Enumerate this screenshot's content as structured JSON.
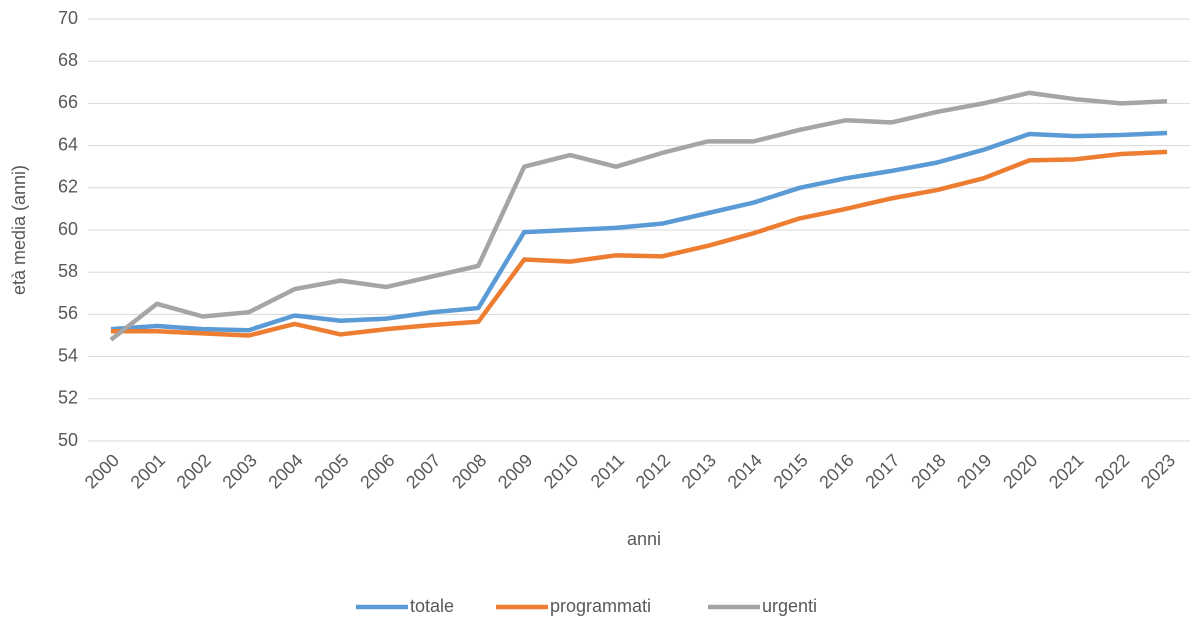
{
  "chart_data": {
    "type": "line",
    "x_label": "anni",
    "y_label": "età media (anni)",
    "categories": [
      "2000",
      "2001",
      "2002",
      "2003",
      "2004",
      "2005",
      "2006",
      "2007",
      "2008",
      "2009",
      "2010",
      "2011",
      "2012",
      "2013",
      "2014",
      "2015",
      "2016",
      "2017",
      "2018",
      "2019",
      "2020",
      "2021",
      "2022",
      "2023"
    ],
    "series": [
      {
        "name": "totale",
        "color": "#5b9bd5",
        "values": [
          55.3,
          55.45,
          55.3,
          55.25,
          55.95,
          55.7,
          55.8,
          56.1,
          56.3,
          59.9,
          60.0,
          60.1,
          60.3,
          60.8,
          61.3,
          62.0,
          62.45,
          62.8,
          63.2,
          63.8,
          64.55,
          64.45,
          64.5,
          64.6
        ]
      },
      {
        "name": "programmati",
        "color": "#ed7d31",
        "values": [
          55.2,
          55.2,
          55.1,
          55.0,
          55.55,
          55.05,
          55.3,
          55.5,
          55.65,
          58.6,
          58.5,
          58.8,
          58.75,
          59.25,
          59.85,
          60.55,
          61.0,
          61.5,
          61.9,
          62.45,
          63.3,
          63.35,
          63.6,
          63.7
        ]
      },
      {
        "name": "urgenti",
        "color": "#a5a5a5",
        "values": [
          54.8,
          56.5,
          55.9,
          56.1,
          57.2,
          57.6,
          57.3,
          57.8,
          58.3,
          63.0,
          63.55,
          63.0,
          63.65,
          64.2,
          64.2,
          64.75,
          65.2,
          65.1,
          65.6,
          66.0,
          66.5,
          66.2,
          66.0,
          66.1
        ]
      }
    ],
    "ylim": [
      50,
      70
    ],
    "yticks": [
      50,
      52,
      54,
      56,
      58,
      60,
      62,
      64,
      66,
      68,
      70
    ],
    "grid": true,
    "legend": "bottom"
  }
}
